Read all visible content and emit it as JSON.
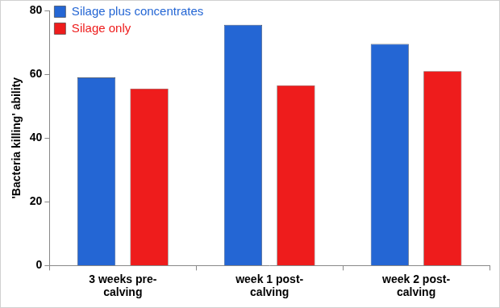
{
  "chart_data": {
    "type": "bar",
    "categories": [
      "3 weeks pre-calving",
      "week 1 post-calving",
      "week 2 post-calving"
    ],
    "series": [
      {
        "name": "Silage plus concentrates",
        "color": "#2466d4",
        "values": [
          59,
          75.5,
          69.5
        ]
      },
      {
        "name": "Silage only",
        "color": "#ee1c1c",
        "values": [
          55.5,
          56.5,
          61
        ]
      }
    ],
    "ylabel": "'Bacteria killing' ability",
    "ylim": [
      0,
      80
    ],
    "yticks": [
      0,
      20,
      40,
      60,
      80
    ],
    "grid": false,
    "legend": "upper left"
  }
}
